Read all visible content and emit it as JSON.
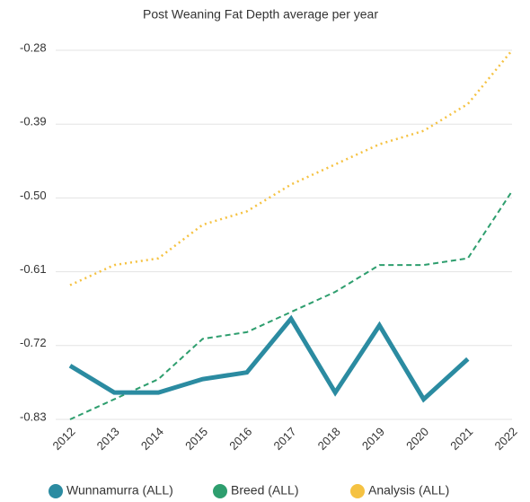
{
  "chart_data": {
    "type": "line",
    "title": "Post Weaning Fat Depth average per year",
    "categories": [
      "2012",
      "2013",
      "2014",
      "2015",
      "2016",
      "2017",
      "2018",
      "2019",
      "2020",
      "2021",
      "2022"
    ],
    "series": [
      {
        "name": "Wunnamurra (ALL)",
        "color": "#2b8ba1",
        "style": "solid",
        "values": [
          -0.75,
          -0.79,
          -0.79,
          -0.77,
          -0.76,
          -0.68,
          -0.79,
          -0.69,
          -0.8,
          -0.74,
          null
        ]
      },
      {
        "name": "Breed (ALL)",
        "color": "#2e9e6e",
        "style": "dashed",
        "values": [
          -0.83,
          -0.8,
          -0.77,
          -0.71,
          -0.7,
          -0.67,
          -0.64,
          -0.6,
          -0.6,
          -0.59,
          -0.49
        ]
      },
      {
        "name": "Analysis (ALL)",
        "color": "#f5c242",
        "style": "dotted",
        "values": [
          -0.63,
          -0.6,
          -0.59,
          -0.54,
          -0.52,
          -0.48,
          -0.45,
          -0.42,
          -0.4,
          -0.36,
          -0.28
        ]
      }
    ],
    "ylim": [
      -0.83,
      -0.28
    ],
    "yticks": [
      -0.28,
      -0.39,
      {
        "value": -0.5,
        "label": "-0.50"
      },
      -0.61,
      -0.72,
      -0.83
    ],
    "grid": true,
    "legend": "bottom"
  }
}
